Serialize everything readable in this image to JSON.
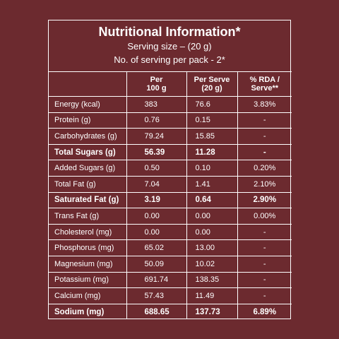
{
  "header": {
    "title": "Nutritional Information*",
    "serving_size": "Serving size – (20 g)",
    "servings_per_pack": "No. of serving per pack - 2*"
  },
  "table": {
    "columns": [
      "",
      "Per\n100 g",
      "Per Serve\n(20 g)",
      "% RDA /\nServe**"
    ],
    "rows": [
      {
        "cells": [
          "Energy (kcal)",
          "383",
          "76.6",
          "3.83%"
        ],
        "bold": false
      },
      {
        "cells": [
          "Protein (g)",
          "0.76",
          "0.15",
          "-"
        ],
        "bold": false
      },
      {
        "cells": [
          "Carbohydrates (g)",
          "79.24",
          "15.85",
          "-"
        ],
        "bold": false
      },
      {
        "cells": [
          "Total Sugars (g)",
          "56.39",
          "11.28",
          "-"
        ],
        "bold": true
      },
      {
        "cells": [
          "Added Sugars (g)",
          "0.50",
          "0.10",
          "0.20%"
        ],
        "bold": false
      },
      {
        "cells": [
          "Total Fat (g)",
          "7.04",
          "1.41",
          "2.10%"
        ],
        "bold": false
      },
      {
        "cells": [
          "Saturated Fat (g)",
          "3.19",
          "0.64",
          "2.90%"
        ],
        "bold": true
      },
      {
        "cells": [
          "Trans Fat (g)",
          "0.00",
          "0.00",
          "0.00%"
        ],
        "bold": false
      },
      {
        "cells": [
          "Cholesterol (mg)",
          "0.00",
          "0.00",
          "-"
        ],
        "bold": false
      },
      {
        "cells": [
          "Phosphorus (mg)",
          "65.02",
          "13.00",
          "-"
        ],
        "bold": false
      },
      {
        "cells": [
          "Magnesium (mg)",
          "50.09",
          "10.02",
          "-"
        ],
        "bold": false
      },
      {
        "cells": [
          "Potassium (mg)",
          "691.74",
          "138.35",
          "-"
        ],
        "bold": false
      },
      {
        "cells": [
          "Calcium (mg)",
          "57.43",
          "11.49",
          "-"
        ],
        "bold": false
      },
      {
        "cells": [
          "Sodium (mg)",
          "688.65",
          "137.73",
          "6.89%"
        ],
        "bold": true
      }
    ]
  }
}
